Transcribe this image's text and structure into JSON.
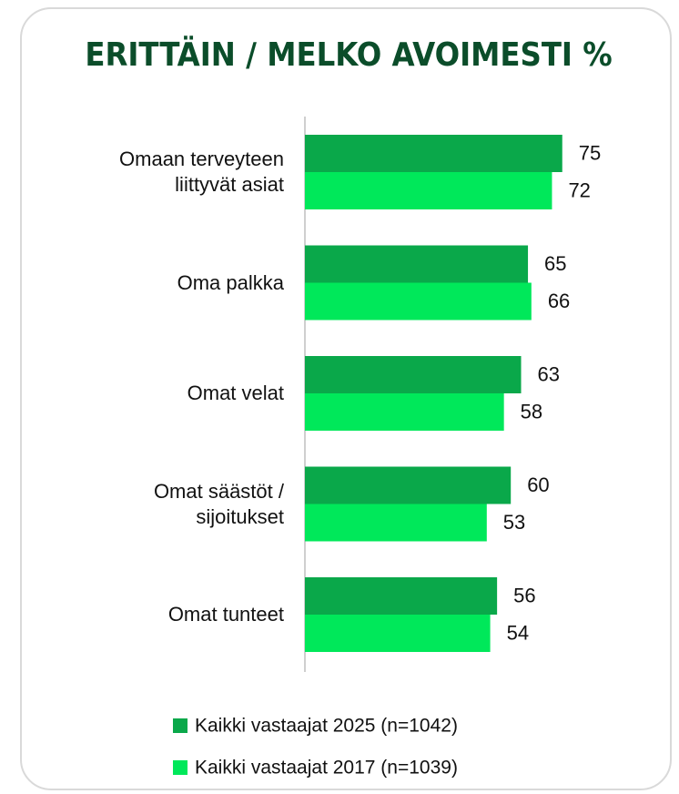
{
  "chart_data": {
    "type": "hbar",
    "title": "ERITTÄIN / MELKO AVOIMESTI %",
    "categories": [
      "Omaan terveyteen liittyvät asiat",
      "Oma palkka",
      "Omat velat",
      "Omat säästöt / sijoitukset",
      "Omat tunteet"
    ],
    "series": [
      {
        "name": "Kaikki vastaajat 2025 (n=1042)",
        "color": "#0aa84a",
        "values": [
          75,
          65,
          63,
          60,
          56
        ]
      },
      {
        "name": "Kaikki vastaajat 2017 (n=1039)",
        "color": "#00e85a",
        "values": [
          72,
          66,
          58,
          53,
          54
        ]
      }
    ],
    "xlim": [
      0,
      100
    ]
  }
}
